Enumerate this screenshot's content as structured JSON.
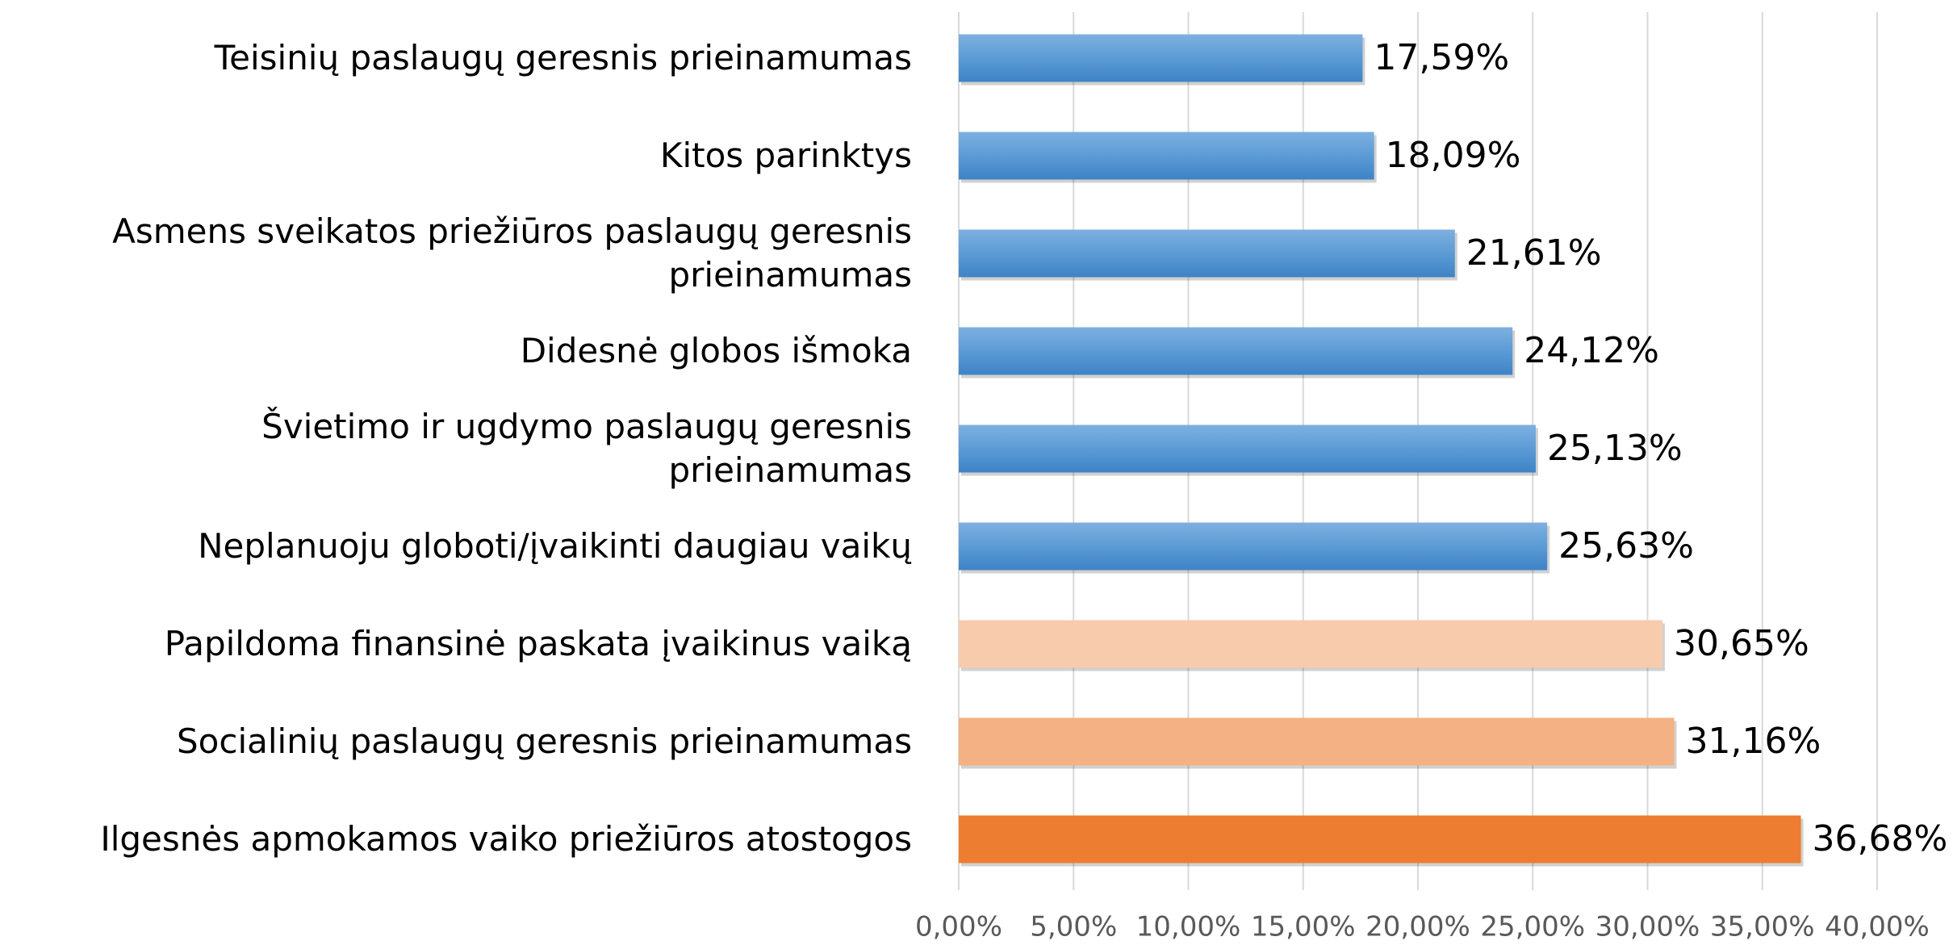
{
  "chart_data": {
    "type": "hbar",
    "categories": [
      "Teisinių paslaugų geresnis prieinamumas",
      "Kitos parinktys",
      "Asmens sveikatos priežiūros paslaugų geresnis prieinamumas",
      "Didesnė globos išmoka",
      "Švietimo ir ugdymo paslaugų geresnis prieinamumas",
      "Neplanuoju globoti/įvaikinti daugiau vaikų",
      "Papildoma finansinė paskata įvaikinus vaiką",
      "Socialinių paslaugų geresnis prieinamumas",
      "Ilgesnės apmokamos vaiko priežiūros atostogos"
    ],
    "values": [
      17.59,
      18.09,
      21.61,
      24.12,
      25.13,
      25.63,
      30.65,
      31.16,
      36.68
    ],
    "value_labels": [
      "17,59%",
      "18,09%",
      "21,61%",
      "24,12%",
      "25,13%",
      "25,63%",
      "30,65%",
      "31,16%",
      "36,68%"
    ],
    "colors": [
      "#5b9bd5",
      "#5b9bd5",
      "#5b9bd5",
      "#5b9bd5",
      "#5b9bd5",
      "#5b9bd5",
      "#f8cbad",
      "#f4b183",
      "#ed7d31"
    ],
    "xlim": [
      0,
      40
    ],
    "xticks": [
      {
        "value": 0,
        "label": "0,00%"
      },
      {
        "value": 5,
        "label": "5,00%"
      },
      {
        "value": 10,
        "label": "10,00%"
      },
      {
        "value": 15,
        "label": "15,00%"
      },
      {
        "value": 20,
        "label": "20,00%"
      },
      {
        "value": 25,
        "label": "25,00%"
      },
      {
        "value": 30,
        "label": "30,00%"
      },
      {
        "value": 35,
        "label": "35,00%"
      },
      {
        "value": 40,
        "label": "40,00%"
      }
    ],
    "grid": true
  }
}
